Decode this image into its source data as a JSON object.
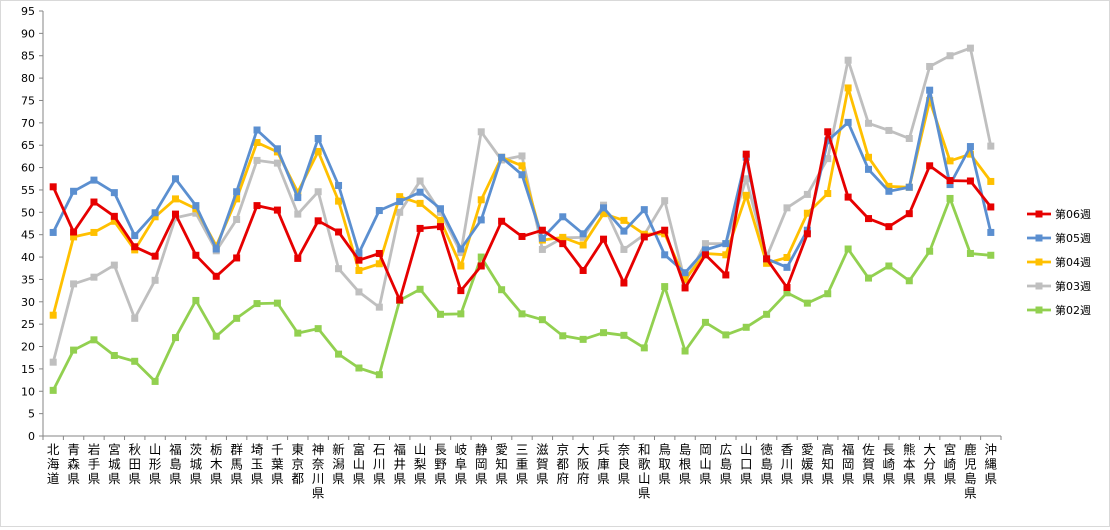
{
  "chart_data": {
    "type": "line",
    "ylim": [
      0,
      95
    ],
    "y_ticks": [
      0,
      5,
      10,
      15,
      20,
      25,
      30,
      35,
      40,
      45,
      50,
      55,
      60,
      65,
      70,
      75,
      80,
      85,
      90,
      95
    ],
    "grid": false,
    "legend_position": "right",
    "categories": [
      "北海道",
      "青森県",
      "岩手県",
      "宮城県",
      "秋田県",
      "山形県",
      "福島県",
      "茨城県",
      "栃木県",
      "群馬県",
      "埼玉県",
      "千葉県",
      "東京都",
      "神奈川県",
      "新潟県",
      "富山県",
      "石川県",
      "福井県",
      "山梨県",
      "長野県",
      "岐阜県",
      "静岡県",
      "愛知県",
      "三重県",
      "滋賀県",
      "京都府",
      "大阪府",
      "兵庫県",
      "奈良県",
      "和歌山県",
      "鳥取県",
      "島根県",
      "岡山県",
      "広島県",
      "山口県",
      "徳島県",
      "香川県",
      "愛媛県",
      "高知県",
      "福岡県",
      "佐賀県",
      "長崎県",
      "熊本県",
      "大分県",
      "宮崎県",
      "鹿児島県",
      "沖縄県"
    ],
    "series": [
      {
        "name": "第02週",
        "color": "#92d050",
        "values": [
          10.2,
          19.2,
          21.5,
          18,
          16.7,
          12.2,
          22,
          30.3,
          22.3,
          26.3,
          29.6,
          29.7,
          23,
          24,
          18.3,
          15.2,
          13.7,
          30.3,
          32.8,
          27.2,
          27.3,
          40,
          32.7,
          27.3,
          26,
          22.4,
          21.6,
          23.1,
          22.5,
          19.7,
          33.4,
          19,
          25.4,
          22.6,
          24.3,
          27.2,
          32,
          29.7,
          31.8,
          41.8,
          35.3,
          38,
          34.7,
          41.3,
          53.1,
          40.8,
          40.4
        ]
      },
      {
        "name": "第03週",
        "color": "#bfbfbf",
        "values": [
          16.5,
          34,
          35.5,
          38.2,
          26.3,
          34.8,
          48.8,
          49.8,
          41.4,
          48.4,
          61.6,
          61,
          49.6,
          54.6,
          37.4,
          32.2,
          28.8,
          50,
          57,
          50,
          41,
          68,
          61.7,
          62.6,
          41.7,
          44.3,
          44.4,
          51.6,
          41.7,
          45,
          52.6,
          34.5,
          43,
          43,
          57.5,
          40,
          51,
          54,
          62,
          84,
          69.9,
          68.3,
          66.5,
          82.6,
          85,
          86.7,
          64.8
        ]
      },
      {
        "name": "第04週",
        "color": "#ffc000",
        "values": [
          27,
          44.5,
          45.5,
          48,
          41.6,
          49,
          53,
          50.8,
          42.5,
          53,
          65.6,
          63.5,
          54.5,
          63.6,
          52.5,
          37,
          38.5,
          53.5,
          52,
          48.2,
          38,
          52.8,
          62.3,
          60.4,
          43.8,
          44.4,
          42.7,
          49.7,
          48.2,
          45.1,
          45.2,
          35,
          40.8,
          40.5,
          53.8,
          38.6,
          39.9,
          49.8,
          54.2,
          77.8,
          62.3,
          55.8,
          55.6,
          75,
          61.5,
          63,
          56.9
        ]
      },
      {
        "name": "第05週",
        "color": "#5b8fd0",
        "values": [
          45.5,
          54.7,
          57.2,
          54.4,
          44.8,
          49.9,
          57.5,
          51.5,
          41.8,
          54.6,
          68.4,
          64.2,
          53.3,
          66.5,
          56,
          40.9,
          50.4,
          52.4,
          54.5,
          50.8,
          41.8,
          48.3,
          62.3,
          58.4,
          44.2,
          49,
          45.2,
          51,
          45.8,
          50.6,
          40.5,
          36.5,
          41.6,
          43,
          62.3,
          39.6,
          37.7,
          46,
          66,
          70.1,
          59.6,
          54.7,
          55.6,
          77.3,
          56.2,
          64.7,
          45.5
        ]
      },
      {
        "name": "第06週",
        "color": "#e60000",
        "values": [
          55.7,
          45.6,
          52.3,
          49.1,
          42.3,
          40.2,
          49.6,
          40.4,
          35.7,
          39.8,
          51.5,
          50.5,
          39.7,
          48.1,
          45.6,
          39.3,
          40.8,
          30.4,
          46.4,
          46.8,
          32.5,
          38,
          48,
          44.6,
          46,
          43,
          37,
          44,
          34.2,
          44.5,
          46,
          33.1,
          40.5,
          36,
          63,
          39.6,
          33.2,
          45.2,
          68,
          53.4,
          48.6,
          46.8,
          49.7,
          60.4,
          57.1,
          57,
          51.2
        ]
      }
    ]
  }
}
